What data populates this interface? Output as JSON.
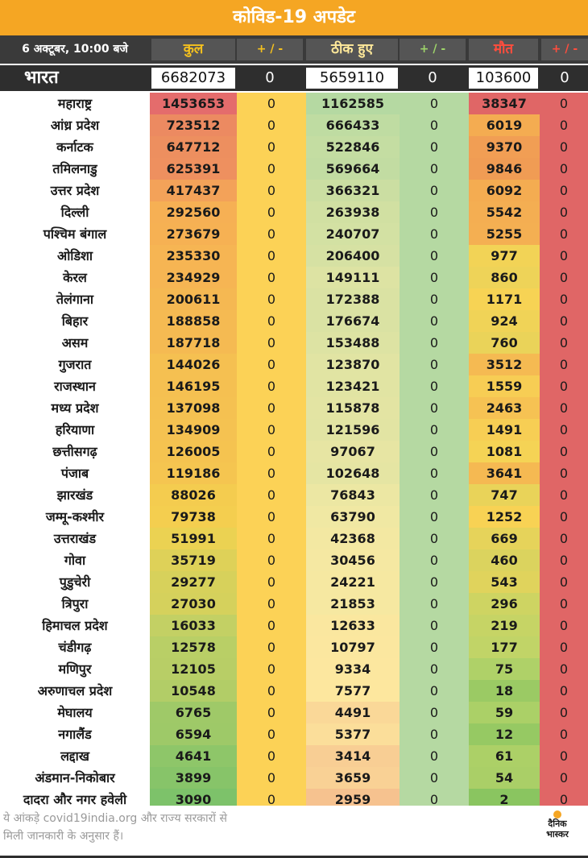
{
  "title": "कोविड-19 अपडेट",
  "header": {
    "date": "6 अक्टूबर, 10:00 बजे",
    "total": "कुल",
    "delta1": "+ / -",
    "recovered": "ठीक हुए",
    "delta2": "+ / -",
    "deaths": "मौत",
    "delta3": "+ / -"
  },
  "nation": {
    "name": "भारत",
    "total": "6682073",
    "delta1": "0",
    "recovered": "5659110",
    "delta2": "0",
    "deaths": "103600",
    "delta3": "0"
  },
  "states": [
    {
      "name": "महाराष्ट्र",
      "total": "1453653",
      "delta1": "0",
      "recovered": "1162585",
      "delta2": "0",
      "deaths": "38347",
      "delta3": "0"
    },
    {
      "name": "आंध्र प्रदेश",
      "total": "723512",
      "delta1": "0",
      "recovered": "666433",
      "delta2": "0",
      "deaths": "6019",
      "delta3": "0"
    },
    {
      "name": "कर्नाटक",
      "total": "647712",
      "delta1": "0",
      "recovered": "522846",
      "delta2": "0",
      "deaths": "9370",
      "delta3": "0"
    },
    {
      "name": "तमिलनाडु",
      "total": "625391",
      "delta1": "0",
      "recovered": "569664",
      "delta2": "0",
      "deaths": "9846",
      "delta3": "0"
    },
    {
      "name": "उत्तर प्रदेश",
      "total": "417437",
      "delta1": "0",
      "recovered": "366321",
      "delta2": "0",
      "deaths": "6092",
      "delta3": "0"
    },
    {
      "name": "दिल्ली",
      "total": "292560",
      "delta1": "0",
      "recovered": "263938",
      "delta2": "0",
      "deaths": "5542",
      "delta3": "0"
    },
    {
      "name": "पश्चिम बंगाल",
      "total": "273679",
      "delta1": "0",
      "recovered": "240707",
      "delta2": "0",
      "deaths": "5255",
      "delta3": "0"
    },
    {
      "name": "ओडिशा",
      "total": "235330",
      "delta1": "0",
      "recovered": "206400",
      "delta2": "0",
      "deaths": "977",
      "delta3": "0"
    },
    {
      "name": "केरल",
      "total": "234929",
      "delta1": "0",
      "recovered": "149111",
      "delta2": "0",
      "deaths": "860",
      "delta3": "0"
    },
    {
      "name": "तेलंगाना",
      "total": "200611",
      "delta1": "0",
      "recovered": "172388",
      "delta2": "0",
      "deaths": "1171",
      "delta3": "0"
    },
    {
      "name": "बिहार",
      "total": "188858",
      "delta1": "0",
      "recovered": "176674",
      "delta2": "0",
      "deaths": "924",
      "delta3": "0"
    },
    {
      "name": "असम",
      "total": "187718",
      "delta1": "0",
      "recovered": "153488",
      "delta2": "0",
      "deaths": "760",
      "delta3": "0"
    },
    {
      "name": "गुजरात",
      "total": "144026",
      "delta1": "0",
      "recovered": "123870",
      "delta2": "0",
      "deaths": "3512",
      "delta3": "0"
    },
    {
      "name": "राजस्थान",
      "total": "146195",
      "delta1": "0",
      "recovered": "123421",
      "delta2": "0",
      "deaths": "1559",
      "delta3": "0"
    },
    {
      "name": "मध्य प्रदेश",
      "total": "137098",
      "delta1": "0",
      "recovered": "115878",
      "delta2": "0",
      "deaths": "2463",
      "delta3": "0"
    },
    {
      "name": "हरियाणा",
      "total": "134909",
      "delta1": "0",
      "recovered": "121596",
      "delta2": "0",
      "deaths": "1491",
      "delta3": "0"
    },
    {
      "name": "छत्तीसगढ़",
      "total": "126005",
      "delta1": "0",
      "recovered": "97067",
      "delta2": "0",
      "deaths": "1081",
      "delta3": "0"
    },
    {
      "name": "पंजाब",
      "total": "119186",
      "delta1": "0",
      "recovered": "102648",
      "delta2": "0",
      "deaths": "3641",
      "delta3": "0"
    },
    {
      "name": "झारखंड",
      "total": "88026",
      "delta1": "0",
      "recovered": "76843",
      "delta2": "0",
      "deaths": "747",
      "delta3": "0"
    },
    {
      "name": "जम्मू-कश्मीर",
      "total": "79738",
      "delta1": "0",
      "recovered": "63790",
      "delta2": "0",
      "deaths": "1252",
      "delta3": "0"
    },
    {
      "name": "उत्तराखंड",
      "total": "51991",
      "delta1": "0",
      "recovered": "42368",
      "delta2": "0",
      "deaths": "669",
      "delta3": "0"
    },
    {
      "name": "गोवा",
      "total": "35719",
      "delta1": "0",
      "recovered": "30456",
      "delta2": "0",
      "deaths": "460",
      "delta3": "0"
    },
    {
      "name": "पुडुचेरी",
      "total": "29277",
      "delta1": "0",
      "recovered": "24221",
      "delta2": "0",
      "deaths": "543",
      "delta3": "0"
    },
    {
      "name": "त्रिपुरा",
      "total": "27030",
      "delta1": "0",
      "recovered": "21853",
      "delta2": "0",
      "deaths": "296",
      "delta3": "0"
    },
    {
      "name": "हिमाचल प्रदेश",
      "total": "16033",
      "delta1": "0",
      "recovered": "12633",
      "delta2": "0",
      "deaths": "219",
      "delta3": "0"
    },
    {
      "name": "चंडीगढ़",
      "total": "12578",
      "delta1": "0",
      "recovered": "10797",
      "delta2": "0",
      "deaths": "177",
      "delta3": "0"
    },
    {
      "name": "मणिपुर",
      "total": "12105",
      "delta1": "0",
      "recovered": "9334",
      "delta2": "0",
      "deaths": "75",
      "delta3": "0"
    },
    {
      "name": "अरुणाचल प्रदेश",
      "total": "10548",
      "delta1": "0",
      "recovered": "7577",
      "delta2": "0",
      "deaths": "18",
      "delta3": "0"
    },
    {
      "name": "मेघालय",
      "total": "6765",
      "delta1": "0",
      "recovered": "4491",
      "delta2": "0",
      "deaths": "59",
      "delta3": "0"
    },
    {
      "name": "नगालैंड",
      "total": "6594",
      "delta1": "0",
      "recovered": "5377",
      "delta2": "0",
      "deaths": "12",
      "delta3": "0"
    },
    {
      "name": "लद्दाख",
      "total": "4641",
      "delta1": "0",
      "recovered": "3414",
      "delta2": "0",
      "deaths": "61",
      "delta3": "0"
    },
    {
      "name": "अंडमान-निकोबार",
      "total": "3899",
      "delta1": "0",
      "recovered": "3659",
      "delta2": "0",
      "deaths": "54",
      "delta3": "0"
    },
    {
      "name": "दादरा और नगर हवेली",
      "total": "3090",
      "delta1": "0",
      "recovered": "2959",
      "delta2": "0",
      "deaths": "2",
      "delta3": "0"
    }
  ],
  "footnote": {
    "line1": "ये आंकड़े covid19india.org और राज्य सरकारों से",
    "line2": "मिली जानकारी के अनुसार हैं।"
  },
  "logo": {
    "line1": "दैनिक",
    "line2": "भास्कर"
  },
  "colors": {
    "title_bar": "#f5a623",
    "header_bg": "#3a3a3a",
    "delta1_column": "#fcd256",
    "delta2_column": "#b5d9a2",
    "delta3_column": "#e06666",
    "total_scale": [
      "#7dc26a",
      "#bfd066",
      "#f4d24e",
      "#f6ae54",
      "#e46c6c"
    ],
    "recovered_scale": [
      "#f6c28f",
      "#fde79e",
      "#f1e8a3",
      "#b5d9a2"
    ],
    "deaths_scale": [
      "#8ac560",
      "#b8d46a",
      "#f8d354",
      "#f3a651",
      "#e06666"
    ]
  }
}
